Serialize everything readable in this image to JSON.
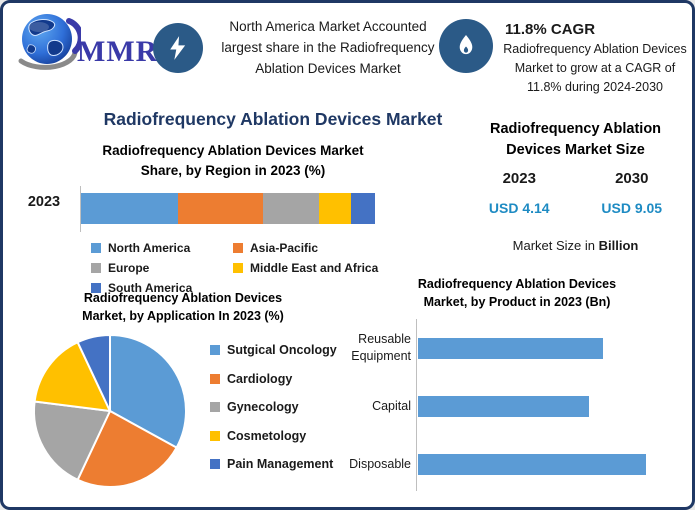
{
  "palette": {
    "frame_border": "#1F3864",
    "icon_circle": "#2B5A87",
    "title_navy": "#1F3864",
    "value_blue": "#1E8BC3",
    "axis_gray": "#BFBFBF"
  },
  "header": {
    "logo_text": "MMR",
    "highlight": {
      "icon": "lightning-icon",
      "text": "North America Market Accounted largest share in the Radiofrequency Ablation Devices Market"
    },
    "cagr": {
      "icon": "flame-icon",
      "title": "11.8% CAGR",
      "text": "Radiofrequency Ablation Devices Market to grow at a CAGR of 11.8% during 2024-2030"
    }
  },
  "main_title": "Radiofrequency Ablation Devices Market",
  "market_size_panel": {
    "title_line1": "Radiofrequency Ablation",
    "title_line2": "Devices Market Size",
    "year_start": "2023",
    "year_end": "2030",
    "value_start": "USD 4.14",
    "value_end": "USD 9.05",
    "note_prefix": "Market Size in ",
    "note_bold": "Billion"
  },
  "chart_data": [
    {
      "id": "region-share",
      "type": "bar",
      "variant": "stacked-horizontal",
      "title_lines": [
        "Radiofrequency Ablation Devices Market",
        "Share, by Region in 2023 (%)"
      ],
      "categories": [
        "2023"
      ],
      "series": [
        {
          "name": "North America",
          "values": [
            33
          ],
          "color": "#5B9BD5"
        },
        {
          "name": "Asia-Pacific",
          "values": [
            29
          ],
          "color": "#ED7D31"
        },
        {
          "name": "Europe",
          "values": [
            19
          ],
          "color": "#A5A5A5"
        },
        {
          "name": "Middle East and Africa",
          "values": [
            11
          ],
          "color": "#FFC000"
        },
        {
          "name": "South America",
          "values": [
            8
          ],
          "color": "#4472C4"
        }
      ],
      "xlim": [
        0,
        100
      ],
      "grid": false,
      "legend_position": "bottom"
    },
    {
      "id": "application-share",
      "type": "pie",
      "title_lines": [
        "Radiofrequency Ablation Devices",
        "Market, by Application In 2023 (%)"
      ],
      "labels": [
        "Sutgical Oncology",
        "Cardiology",
        "Gynecology",
        "Cosmetology",
        "Pain Management"
      ],
      "values": [
        33,
        24,
        20,
        16,
        7
      ],
      "colors": [
        "#5B9BD5",
        "#ED7D31",
        "#A5A5A5",
        "#FFC000",
        "#4472C4"
      ],
      "start_angle_deg": 0,
      "direction": "clockwise",
      "legend_position": "right"
    },
    {
      "id": "product-market",
      "type": "bar",
      "variant": "horizontal",
      "title_lines": [
        "Radiofrequency Ablation Devices",
        "Market, by Product in 2023 (Bn)"
      ],
      "categories": [
        "Reusable Equipment",
        "Capital",
        "Disposable"
      ],
      "values": [
        81,
        75,
        100
      ],
      "value_note": "relative length, % of longest bar (no value axis shown)",
      "color": "#5B9BD5",
      "grid": false
    }
  ]
}
